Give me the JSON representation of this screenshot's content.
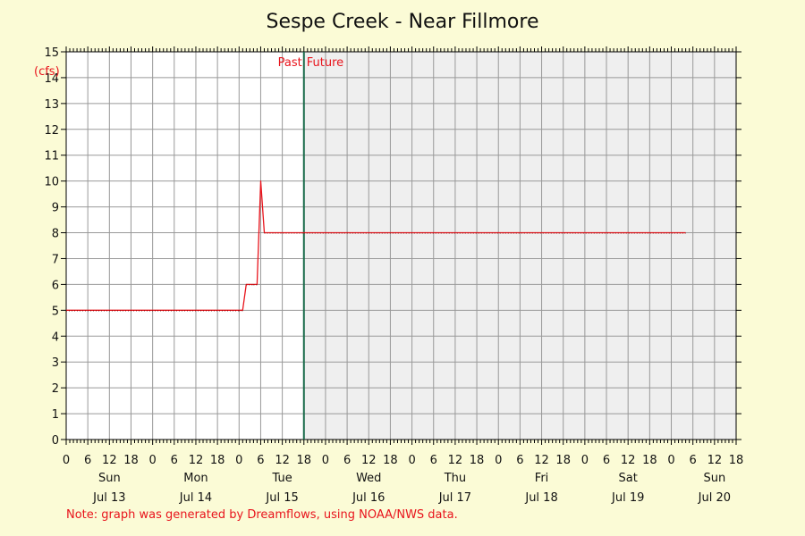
{
  "chart_data": {
    "type": "line",
    "title": "Sespe Creek - Near Fillmore",
    "ylabel": "(cfs)",
    "ylim": [
      0,
      15
    ],
    "yticks": [
      0,
      1,
      2,
      3,
      4,
      5,
      6,
      7,
      8,
      9,
      10,
      11,
      12,
      13,
      14,
      15
    ],
    "xlim_hours": [
      0,
      186
    ],
    "hour_tick_labels": [
      "0",
      "6",
      "12",
      "18"
    ],
    "days": [
      {
        "weekday": "Sun",
        "date": "Jul 13"
      },
      {
        "weekday": "Mon",
        "date": "Jul 14"
      },
      {
        "weekday": "Tue",
        "date": "Jul 15"
      },
      {
        "weekday": "Wed",
        "date": "Jul 16"
      },
      {
        "weekday": "Thu",
        "date": "Jul 17"
      },
      {
        "weekday": "Fri",
        "date": "Jul 18"
      },
      {
        "weekday": "Sat",
        "date": "Jul 19"
      },
      {
        "weekday": "Sun",
        "date": "Jul 20"
      }
    ],
    "now_hour": 66,
    "past_label": "Past",
    "future_label": "Future",
    "grid": true,
    "colors": {
      "line": "#e8141c",
      "now_line": "#1a6b4a",
      "future_shade": "#efefef",
      "grid": "#999999",
      "text_accent": "#e8141c"
    },
    "series": [
      {
        "x_hours": [
          0,
          48,
          49,
          50,
          52,
          53,
          54,
          55,
          66,
          172
        ],
        "values": [
          5,
          5,
          5,
          6,
          6,
          6,
          10,
          8,
          8,
          8
        ]
      }
    ]
  },
  "footer": {
    "note": "Note: graph was generated by Dreamflows, using NOAA/NWS data."
  }
}
